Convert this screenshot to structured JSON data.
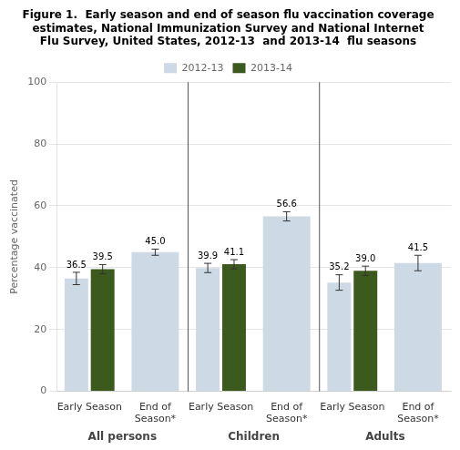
{
  "chart_data": {
    "type": "bar",
    "title": "Figure 1.  Early season and end of season flu vaccination coverage\nestimates, National Immunization Survey and National Internet\nFlu Survey, United States, 2012-13  and 2013-14  flu seasons",
    "ylabel": "Percentage vaccinated",
    "groups": [
      "All persons",
      "Children",
      "Adults"
    ],
    "categories": [
      "Early Season",
      "End of\nSeason*",
      "Early Season",
      "End of\nSeason*",
      "Early Season",
      "End of\nSeason*"
    ],
    "series": [
      {
        "name": "2012-13",
        "color": "#cdd9e5",
        "values": [
          36.5,
          45.0,
          39.9,
          56.6,
          35.2,
          41.5
        ],
        "value_labels": [
          "36.5",
          "45.0",
          "39.9",
          "56.6",
          "35.2",
          "41.5"
        ],
        "errors": [
          2.0,
          1.0,
          1.5,
          1.5,
          2.5,
          2.5
        ]
      },
      {
        "name": "2013-14",
        "color": "#3d5a1e",
        "values": [
          39.5,
          null,
          41.1,
          null,
          39.0,
          null
        ],
        "value_labels": [
          "39.5",
          null,
          "41.1",
          null,
          "39.0",
          null
        ],
        "errors": [
          1.5,
          null,
          1.5,
          null,
          1.5,
          null
        ]
      }
    ],
    "ylim": [
      0,
      100
    ],
    "yticks": [
      0,
      20,
      40,
      60,
      80,
      100
    ],
    "grid": true,
    "legend": "top",
    "data_labels": true
  }
}
